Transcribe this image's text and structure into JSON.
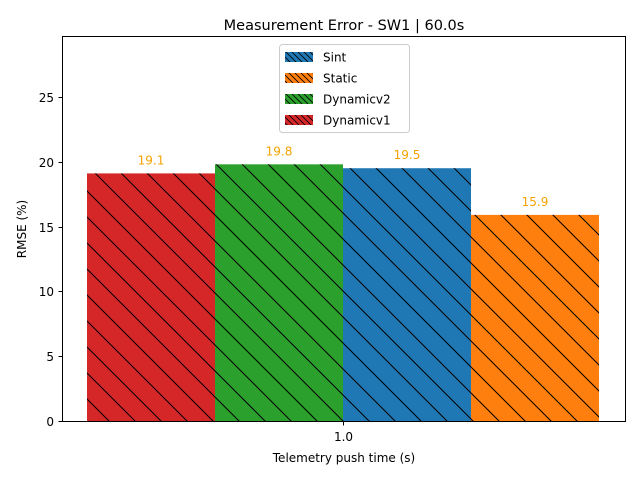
{
  "chart_data": {
    "type": "bar",
    "title": "Measurement Error - SW1 | 60.0s",
    "xlabel": "Telemetry push time (s)",
    "ylabel": "RMSE (%)",
    "categories": [
      "1.0"
    ],
    "ylim": [
      0,
      29.7
    ],
    "yticks": [
      0,
      5,
      10,
      15,
      20,
      25
    ],
    "grid": false,
    "legend_position": "upper center",
    "bar_order": [
      "Dynamicv1",
      "Dynamicv2",
      "Sint",
      "Static"
    ],
    "series": [
      {
        "name": "Sint",
        "values": [
          19.5
        ],
        "label": "19.5",
        "color": "#1f77b4"
      },
      {
        "name": "Static",
        "values": [
          15.9
        ],
        "label": "15.9",
        "color": "#ff7f0e"
      },
      {
        "name": "Dynamicv2",
        "values": [
          19.8
        ],
        "label": "19.8",
        "color": "#2ca02c"
      },
      {
        "name": "Dynamicv1",
        "values": [
          19.1
        ],
        "label": "19.1",
        "color": "#d62728"
      }
    ],
    "hatch": "diagonal",
    "value_label_color": "#f5a300"
  }
}
